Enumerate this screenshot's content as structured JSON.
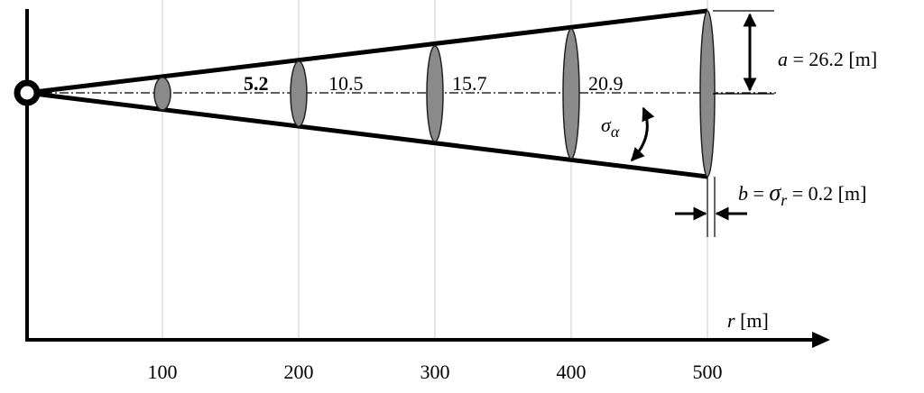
{
  "axis": {
    "symbol": "r",
    "unit": "[m]",
    "ticks": [
      "100",
      "200",
      "300",
      "400",
      "500"
    ]
  },
  "ellipse_labels": [
    "5.2",
    "10.5",
    "15.7",
    "20.9"
  ],
  "annotations": {
    "a": {
      "symbol": "a",
      "text": "= 26.2 [m]"
    },
    "sigma_alpha": {
      "symbol": "σ",
      "subscript": "α"
    },
    "b": {
      "symbol": "b",
      "equals": "=",
      "sigma": "σ",
      "subscript": "r",
      "text": "= 0.2 [m]"
    }
  }
}
